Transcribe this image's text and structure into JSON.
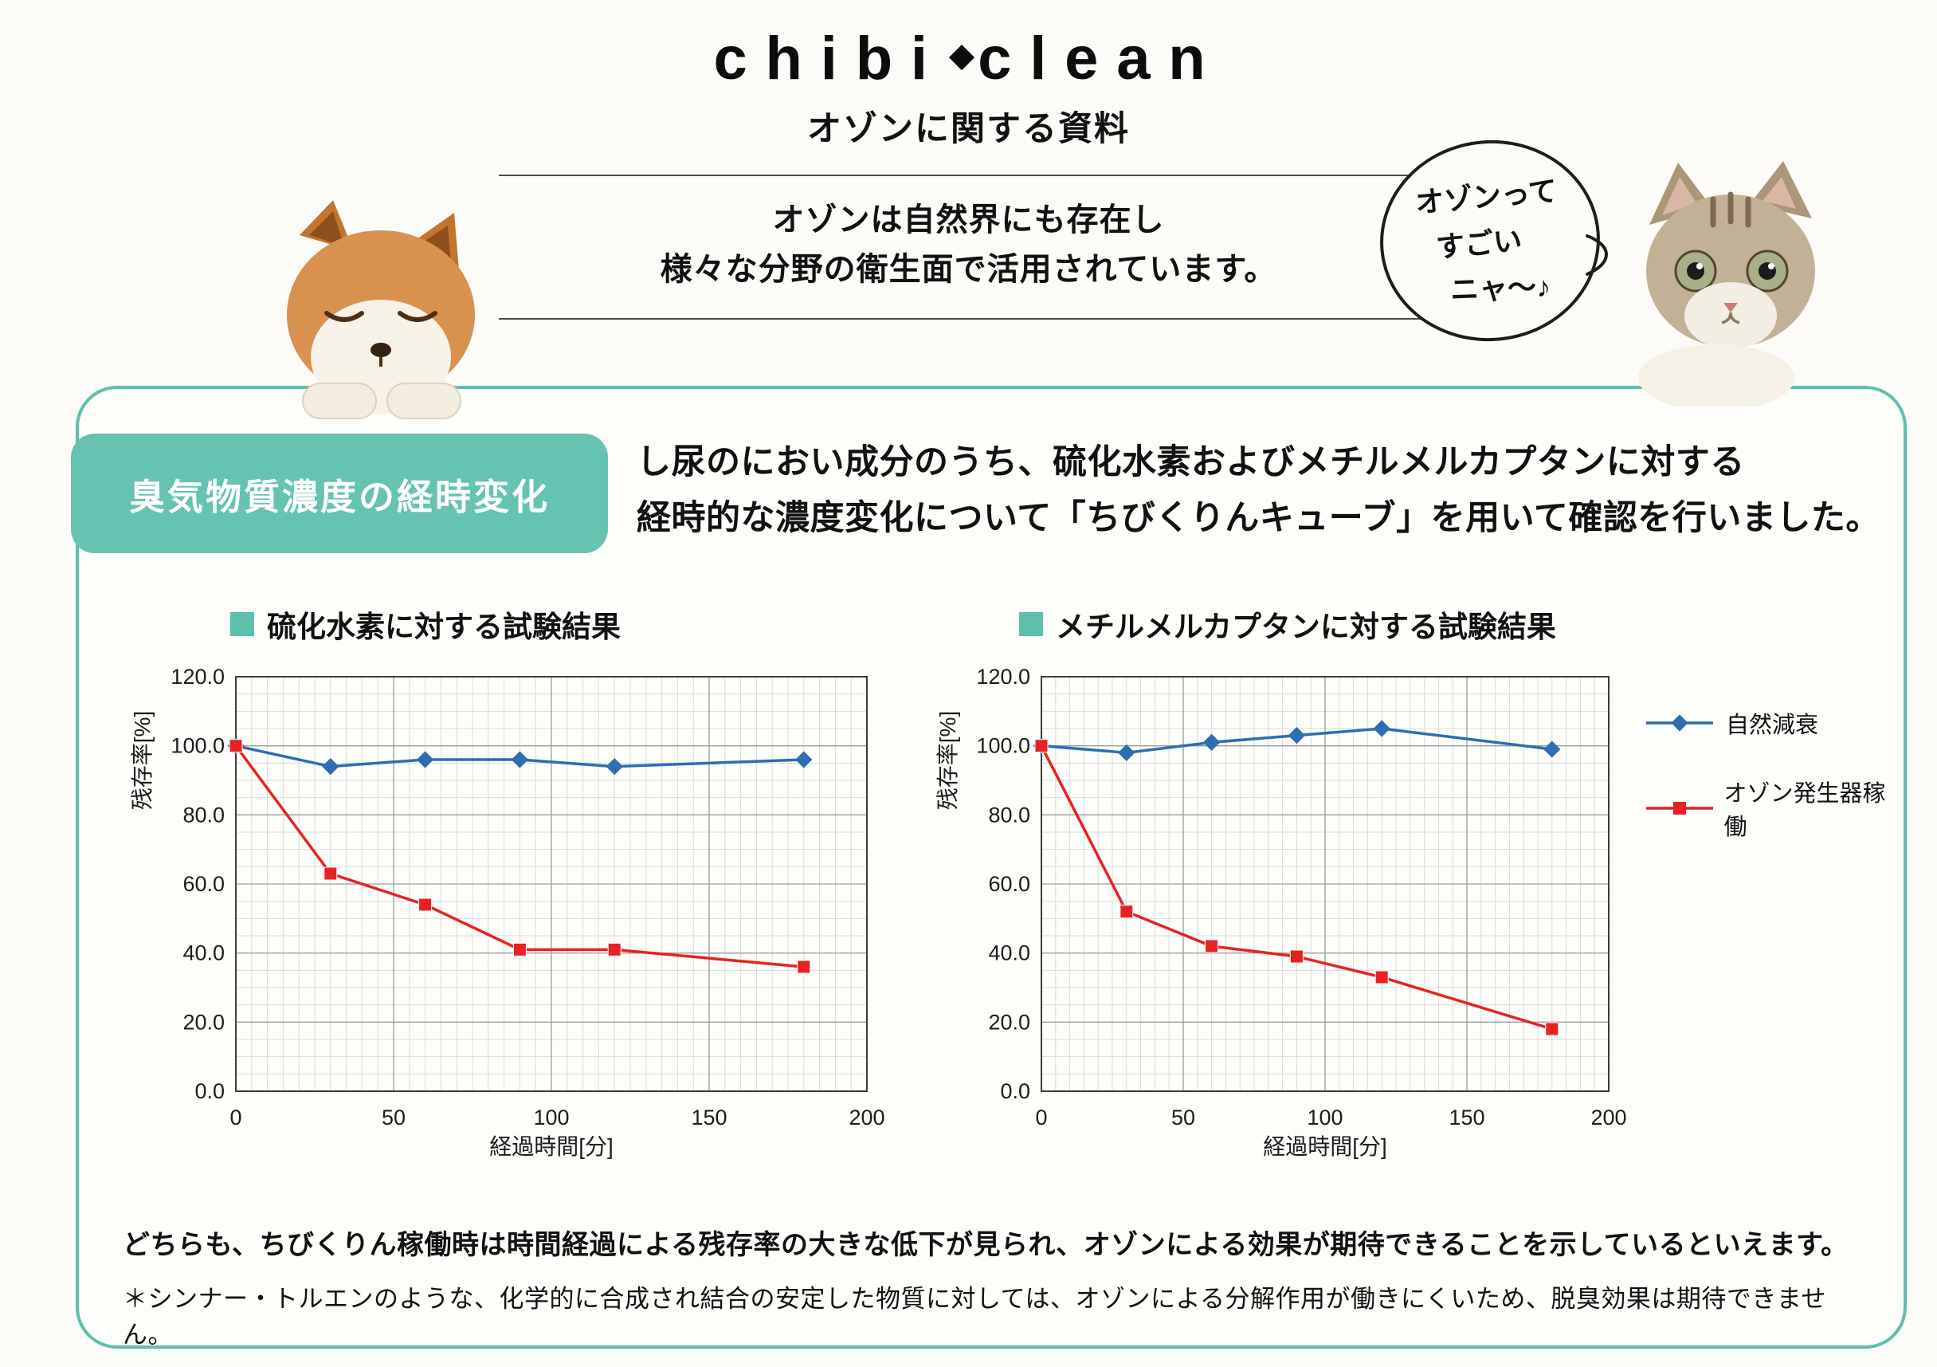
{
  "header": {
    "logo_left": "chibi",
    "logo_diamond": "◆",
    "logo_right": "clean",
    "subtitle": "オゾンに関する資料",
    "intro_line1": "オゾンは自然界にも存在し",
    "intro_line2": "様々な分野の衛生面で活用されています。"
  },
  "speech_bubble": {
    "lines": [
      "オゾンって",
      "すごい",
      "ニャ〜♪"
    ]
  },
  "section": {
    "label": "臭気物質濃度の経時変化",
    "desc_line1": "し尿のにおい成分のうち、硫化水素およびメチルメルカプタンに対する",
    "desc_line2": "経時的な濃度変化について「ちびくりんキューブ」を用いて確認を行いました。"
  },
  "colors": {
    "teal": "#5fbfae",
    "teal_label": "#66c2b1",
    "blue_series": "#2e6db4",
    "red_series": "#e62320"
  },
  "chart_data": [
    {
      "type": "line",
      "title": "硫化水素に対する試験結果",
      "xlabel": "経過時間[分]",
      "ylabel": "残存率[%]",
      "x": [
        0,
        30,
        60,
        90,
        120,
        180
      ],
      "xlim": [
        0,
        200
      ],
      "ylim": [
        0,
        120
      ],
      "xticks": [
        0,
        50,
        100,
        150,
        200
      ],
      "ytick_labels": [
        "0.0",
        "20.0",
        "40.0",
        "60.0",
        "80.0",
        "100.0",
        "120.0"
      ],
      "grid": {
        "minor_x": 5,
        "minor_y": 5
      },
      "legend_position": "outside-right",
      "series": [
        {
          "name": "自然減衰",
          "color": "#2e6db4",
          "marker": "diamond",
          "values": [
            100,
            94,
            96,
            96,
            94,
            96
          ]
        },
        {
          "name": "オゾン発生器稼働",
          "color": "#e62320",
          "marker": "square",
          "values": [
            100,
            63,
            54,
            41,
            41,
            36
          ]
        }
      ]
    },
    {
      "type": "line",
      "title": "メチルメルカプタンに対する試験結果",
      "xlabel": "経過時間[分]",
      "ylabel": "残存率[%]",
      "x": [
        0,
        30,
        60,
        90,
        120,
        180
      ],
      "xlim": [
        0,
        200
      ],
      "ylim": [
        0,
        120
      ],
      "xticks": [
        0,
        50,
        100,
        150,
        200
      ],
      "ytick_labels": [
        "0.0",
        "20.0",
        "40.0",
        "60.0",
        "80.0",
        "100.0",
        "120.0"
      ],
      "grid": {
        "minor_x": 5,
        "minor_y": 5
      },
      "legend_position": "outside-right",
      "series": [
        {
          "name": "自然減衰",
          "color": "#2e6db4",
          "marker": "diamond",
          "values": [
            100,
            98,
            101,
            103,
            105,
            99
          ]
        },
        {
          "name": "オゾン発生器稼働",
          "color": "#e62320",
          "marker": "square",
          "values": [
            100,
            52,
            42,
            39,
            33,
            18
          ]
        }
      ]
    }
  ],
  "legend": {
    "items": [
      {
        "label": "自然減衰",
        "color": "#2e6db4",
        "marker": "diamond"
      },
      {
        "label": "オゾン発生器稼働",
        "color": "#e62320",
        "marker": "square"
      }
    ]
  },
  "footer": {
    "summary": "どちらも、ちびくりん稼働時は時間経過による残存率の大きな低下が見られ、オゾンによる効果が期待できることを示しているといえます。",
    "note": "＊シンナー・トルエンのような、化学的に合成され結合の安定した物質に対しては、オゾンによる分解作用が働きにくいため、脱臭効果は期待できません。"
  }
}
